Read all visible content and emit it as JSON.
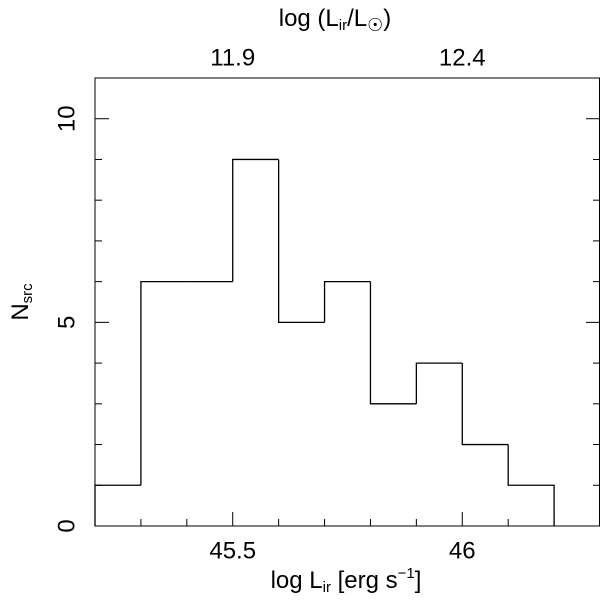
{
  "chart_data": {
    "type": "histogram",
    "bins": [
      45.2,
      45.3,
      45.4,
      45.5,
      45.6,
      45.7,
      45.8,
      45.9,
      46.0,
      46.1,
      46.2
    ],
    "values": [
      1,
      6,
      6,
      9,
      5,
      6,
      3,
      4,
      2,
      1
    ],
    "color": "#000000",
    "xlim": [
      45.2,
      46.3
    ],
    "xticks": [
      45.5,
      46
    ],
    "x_minor_ticks": [
      45.3,
      45.4,
      45.6,
      45.7,
      45.8,
      45.9,
      46.1,
      46.2
    ],
    "ylim": [
      0,
      11
    ],
    "yticks": [
      0,
      5,
      10
    ],
    "y_minor_ticks": [
      1,
      2,
      3,
      4,
      6,
      7,
      8,
      9,
      11
    ],
    "x2lim": [
      11.6,
      12.7
    ],
    "x2ticks": [
      11.9,
      12.4
    ],
    "xlabel": {
      "main": "log L",
      "sub": "ir",
      "rest": " [erg s",
      "sup": "−1",
      "end": "]"
    },
    "x2label": {
      "main": "log (L",
      "sub": "ir",
      "rest": "/L",
      "sub2": "☉",
      "end": ")"
    },
    "ylabel": {
      "main": "N",
      "sub": "src"
    }
  }
}
